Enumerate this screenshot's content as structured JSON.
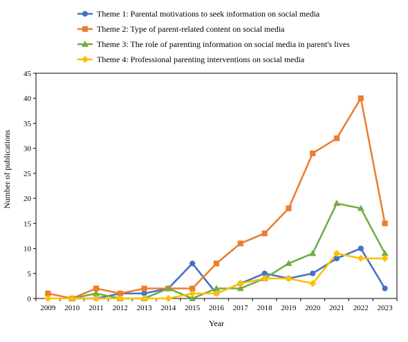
{
  "chart_data": {
    "type": "line",
    "title": "",
    "xlabel": "Year",
    "ylabel": "Number of publications",
    "ylim": [
      0,
      45
    ],
    "yticks": [
      0,
      5,
      10,
      15,
      20,
      25,
      30,
      35,
      40,
      45
    ],
    "grid": false,
    "legend_position": "top",
    "categories": [
      "2009",
      "2010",
      "2011",
      "2012",
      "2013",
      "2014",
      "2015",
      "2016",
      "2017",
      "2018",
      "2019",
      "2020",
      "2021",
      "2022",
      "2023"
    ],
    "series": [
      {
        "name": "Theme 1: Parental motivations to seek information on social media",
        "color": "#4472C4",
        "marker": "circle",
        "values": [
          null,
          0,
          0,
          1,
          1,
          2,
          7,
          1,
          3,
          5,
          4,
          5,
          8,
          10,
          2
        ]
      },
      {
        "name": "Theme 2: Type of parent-related content on social media",
        "color": "#ED7D31",
        "marker": "square",
        "values": [
          1,
          0,
          2,
          1,
          2,
          2,
          2,
          7,
          11,
          13,
          18,
          29,
          32,
          40,
          15
        ]
      },
      {
        "name": "Theme 3: The role of parenting information on social media in parent's lives",
        "color": "#70AD47",
        "marker": "triangle",
        "values": [
          null,
          0,
          1,
          0,
          0,
          2,
          0,
          2,
          2,
          4,
          7,
          9,
          19,
          18,
          9
        ]
      },
      {
        "name": "Theme 4: Professional parenting interventions on social media",
        "color": "#FFC000",
        "marker": "diamond",
        "values": [
          0,
          0,
          0,
          0,
          0,
          0,
          1,
          1,
          3,
          4,
          4,
          3,
          9,
          8,
          8
        ]
      }
    ]
  }
}
